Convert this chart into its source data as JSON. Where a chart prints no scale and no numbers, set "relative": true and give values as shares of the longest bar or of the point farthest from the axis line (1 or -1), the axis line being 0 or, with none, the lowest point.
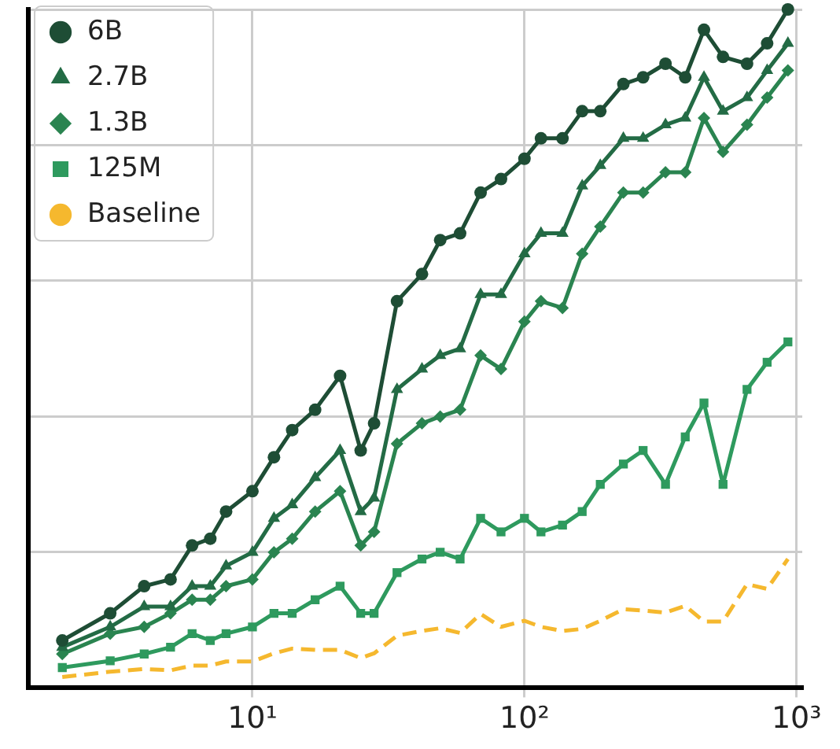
{
  "chart_data": {
    "type": "line",
    "relative": true,
    "log": "x",
    "grid": true,
    "legend": "top left",
    "x": [
      2,
      3,
      4,
      5,
      6,
      7,
      8,
      10,
      12,
      14,
      17,
      21,
      25,
      28,
      34,
      42,
      49,
      58,
      69,
      82,
      100,
      115,
      138,
      163,
      190,
      231,
      273,
      330,
      390,
      457,
      537,
      658,
      780,
      930
    ],
    "xlim": [
      1.5,
      1050
    ],
    "xticks": [
      {
        "value": 10,
        "label": "10¹"
      },
      {
        "value": 100,
        "label": "10²"
      },
      {
        "value": 1000,
        "label": "10³"
      }
    ],
    "series": [
      {
        "name": "6B",
        "color": "#1e4d35",
        "marker": "circle",
        "line_style": "solid",
        "values": [
          0.07,
          0.11,
          0.15,
          0.16,
          0.21,
          0.22,
          0.26,
          0.29,
          0.34,
          0.38,
          0.41,
          0.46,
          0.35,
          0.39,
          0.57,
          0.61,
          0.66,
          0.67,
          0.73,
          0.75,
          0.78,
          0.81,
          0.81,
          0.85,
          0.85,
          0.89,
          0.9,
          0.92,
          0.9,
          0.97,
          0.93,
          0.92,
          0.95,
          1.0
        ]
      },
      {
        "name": "2.7B",
        "color": "#236b45",
        "marker": "triangle",
        "line_style": "solid",
        "values": [
          0.06,
          0.09,
          0.12,
          0.12,
          0.15,
          0.15,
          0.18,
          0.2,
          0.25,
          0.27,
          0.31,
          0.35,
          0.26,
          0.28,
          0.44,
          0.47,
          0.49,
          0.5,
          0.58,
          0.58,
          0.64,
          0.67,
          0.67,
          0.74,
          0.77,
          0.81,
          0.81,
          0.83,
          0.84,
          0.9,
          0.85,
          0.87,
          0.91,
          0.95
        ]
      },
      {
        "name": "1.3B",
        "color": "#2a8450",
        "marker": "diamond",
        "line_style": "solid",
        "values": [
          0.05,
          0.08,
          0.09,
          0.11,
          0.13,
          0.13,
          0.15,
          0.16,
          0.2,
          0.22,
          0.26,
          0.29,
          0.21,
          0.23,
          0.36,
          0.39,
          0.4,
          0.41,
          0.49,
          0.47,
          0.54,
          0.57,
          0.56,
          0.64,
          0.68,
          0.73,
          0.73,
          0.76,
          0.76,
          0.84,
          0.79,
          0.83,
          0.87,
          0.91
        ]
      },
      {
        "name": "125M",
        "color": "#2e9a5e",
        "marker": "square",
        "line_style": "solid",
        "values": [
          0.03,
          0.04,
          0.05,
          0.06,
          0.08,
          0.07,
          0.08,
          0.09,
          0.11,
          0.11,
          0.13,
          0.15,
          0.11,
          0.11,
          0.17,
          0.19,
          0.2,
          0.19,
          0.25,
          0.23,
          0.25,
          0.23,
          0.24,
          0.26,
          0.3,
          0.33,
          0.35,
          0.3,
          0.37,
          0.42,
          0.3,
          0.44,
          0.48,
          0.51
        ]
      },
      {
        "name": "Baseline",
        "color": "#f5b82e",
        "marker": "none",
        "line_style": "dashed",
        "values": [
          0.016,
          0.024,
          0.028,
          0.026,
          0.033,
          0.033,
          0.039,
          0.039,
          0.051,
          0.058,
          0.056,
          0.056,
          0.044,
          0.051,
          0.077,
          0.084,
          0.088,
          0.081,
          0.109,
          0.09,
          0.099,
          0.09,
          0.084,
          0.087,
          0.099,
          0.116,
          0.114,
          0.111,
          0.121,
          0.098,
          0.098,
          0.153,
          0.146,
          0.19
        ]
      }
    ]
  }
}
